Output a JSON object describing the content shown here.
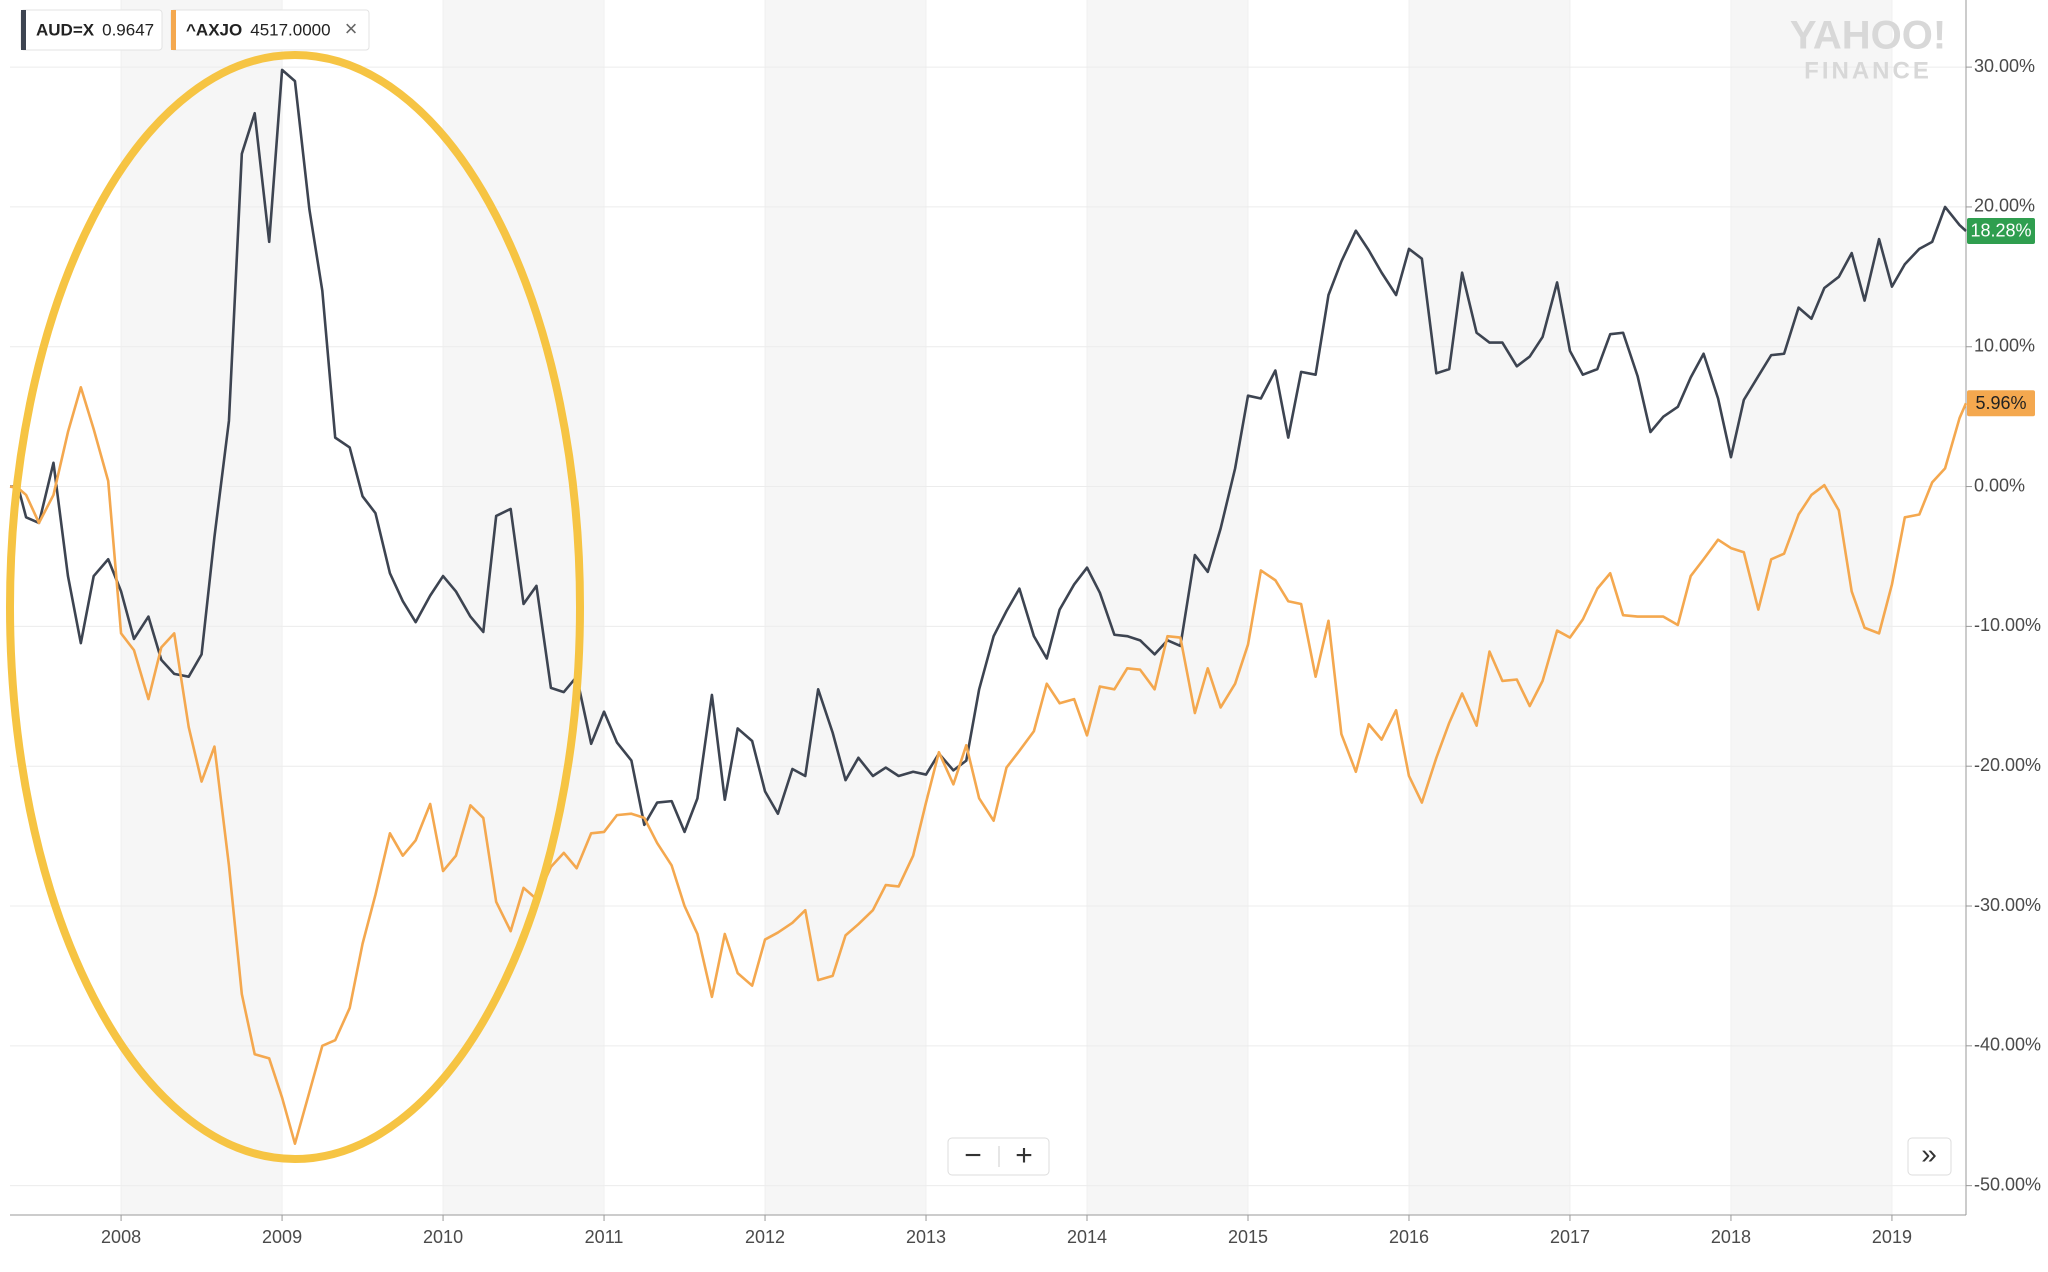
{
  "chart_data": {
    "type": "line",
    "x": [
      2007.31,
      2007.36,
      2007.41,
      2007.49,
      2007.58,
      2007.67,
      2007.75,
      2007.83,
      2007.92,
      2008.0,
      2008.08,
      2008.17,
      2008.25,
      2008.33,
      2008.42,
      2008.5,
      2008.58,
      2008.67,
      2008.75,
      2008.83,
      2008.92,
      2009.0,
      2009.08,
      2009.17,
      2009.25,
      2009.33,
      2009.42,
      2009.5,
      2009.58,
      2009.67,
      2009.75,
      2009.83,
      2009.92,
      2010.0,
      2010.08,
      2010.17,
      2010.25,
      2010.33,
      2010.42,
      2010.5,
      2010.58,
      2010.67,
      2010.75,
      2010.83,
      2010.92,
      2011.0,
      2011.08,
      2011.17,
      2011.25,
      2011.33,
      2011.42,
      2011.5,
      2011.58,
      2011.67,
      2011.75,
      2011.83,
      2011.92,
      2012.0,
      2012.08,
      2012.17,
      2012.25,
      2012.33,
      2012.42,
      2012.5,
      2012.58,
      2012.67,
      2012.75,
      2012.83,
      2012.92,
      2013.0,
      2013.08,
      2013.17,
      2013.25,
      2013.33,
      2013.42,
      2013.5,
      2013.58,
      2013.67,
      2013.75,
      2013.83,
      2013.92,
      2014.0,
      2014.08,
      2014.17,
      2014.25,
      2014.33,
      2014.42,
      2014.5,
      2014.58,
      2014.67,
      2014.75,
      2014.83,
      2014.92,
      2015.0,
      2015.08,
      2015.17,
      2015.25,
      2015.33,
      2015.42,
      2015.5,
      2015.58,
      2015.67,
      2015.75,
      2015.83,
      2015.92,
      2016.0,
      2016.08,
      2016.17,
      2016.25,
      2016.33,
      2016.42,
      2016.5,
      2016.58,
      2016.67,
      2016.75,
      2016.83,
      2016.92,
      2017.0,
      2017.08,
      2017.17,
      2017.25,
      2017.33,
      2017.42,
      2017.5,
      2017.58,
      2017.67,
      2017.75,
      2017.83,
      2017.92,
      2018.0,
      2018.08,
      2018.17,
      2018.25,
      2018.33,
      2018.42,
      2018.5,
      2018.58,
      2018.67,
      2018.75,
      2018.83,
      2018.92,
      2019.0,
      2019.08,
      2019.17,
      2019.25,
      2019.33,
      2019.42,
      2019.46
    ],
    "xlim": [
      2007.31,
      2019.46
    ],
    "xticks": [
      2008,
      2009,
      2010,
      2011,
      2012,
      2013,
      2014,
      2015,
      2016,
      2017,
      2018,
      2019
    ],
    "ylim": [
      -52.1,
      34.8
    ],
    "yticks": [
      {
        "value": 30,
        "label": "30.00%"
      },
      {
        "value": 20,
        "label": "20.00%"
      },
      {
        "value": 10,
        "label": "10.00%"
      },
      {
        "value": 0,
        "label": "0.00%"
      },
      {
        "value": -10,
        "label": "-10.00%"
      },
      {
        "value": -20,
        "label": "-20.00%"
      },
      {
        "value": -30,
        "label": "-30.00%"
      },
      {
        "value": -40,
        "label": "-40.00%"
      },
      {
        "value": -50,
        "label": "-50.00%"
      }
    ],
    "grid": true,
    "shade_alternate_years": true,
    "series": [
      {
        "name": "AUD=X",
        "quote": "0.9647",
        "color": "#3d4451",
        "end_label": "18.28%",
        "end_label_color": "#2f9e4f",
        "values": [
          0,
          0,
          -2.2,
          -2.6,
          1.7,
          -6.4,
          -11.2,
          -6.4,
          -5.2,
          -7.5,
          -10.9,
          -9.3,
          -12.4,
          -13.4,
          -13.6,
          -12.0,
          -3.6,
          4.7,
          23.8,
          26.7,
          17.5,
          29.8,
          29.0,
          19.8,
          14.0,
          3.5,
          2.8,
          -0.7,
          -1.9,
          -6.2,
          -8.2,
          -9.7,
          -7.8,
          -6.4,
          -7.5,
          -9.3,
          -10.4,
          -2.1,
          -1.6,
          -8.4,
          -7.1,
          -14.4,
          -14.7,
          -13.6,
          -18.4,
          -16.1,
          -18.3,
          -19.6,
          -24.2,
          -22.6,
          -22.5,
          -24.7,
          -22.3,
          -14.9,
          -22.4,
          -17.3,
          -18.2,
          -21.8,
          -23.4,
          -20.2,
          -20.7,
          -14.5,
          -17.6,
          -21.0,
          -19.4,
          -20.7,
          -20.1,
          -20.7,
          -20.4,
          -20.6,
          -19.1,
          -20.3,
          -19.6,
          -14.5,
          -10.7,
          -8.9,
          -7.3,
          -10.7,
          -12.3,
          -8.8,
          -7.0,
          -5.8,
          -7.6,
          -10.6,
          -10.7,
          -11.0,
          -12.0,
          -11.0,
          -11.4,
          -4.9,
          -6.1,
          -3.0,
          1.3,
          6.5,
          6.3,
          8.3,
          3.5,
          8.2,
          8.0,
          13.7,
          16.1,
          18.3,
          16.9,
          15.3,
          13.7,
          17.0,
          16.3,
          8.1,
          8.4,
          15.3,
          11.0,
          10.3,
          10.3,
          8.6,
          9.3,
          10.7,
          14.6,
          9.7,
          8.0,
          8.4,
          10.9,
          11.0,
          7.9,
          3.9,
          5.0,
          5.7,
          7.8,
          9.5,
          6.3,
          2.1,
          6.2,
          7.9,
          9.4,
          9.5,
          12.8,
          12.0,
          14.2,
          15.0,
          16.7,
          13.3,
          17.7,
          14.3,
          15.9,
          17.0,
          17.5,
          20.0,
          18.7,
          18.28
        ]
      },
      {
        "name": "^AXJO",
        "quote": "4517.0000",
        "color": "#f4a84f",
        "end_label": "5.96%",
        "end_label_color": "#f4a84f",
        "values": [
          0,
          -0.1,
          -0.6,
          -2.6,
          -0.6,
          3.9,
          7.1,
          4.1,
          0.4,
          -10.5,
          -11.7,
          -15.2,
          -11.5,
          -10.5,
          -17.2,
          -21.1,
          -18.6,
          -27.1,
          -36.3,
          -40.6,
          -40.9,
          -43.7,
          -47.0,
          -43.3,
          -40.0,
          -39.6,
          -37.3,
          -32.7,
          -29.2,
          -24.8,
          -26.4,
          -25.3,
          -22.7,
          -27.5,
          -26.4,
          -22.8,
          -23.7,
          -29.7,
          -31.8,
          -28.7,
          -29.5,
          -27.2,
          -26.2,
          -27.3,
          -24.8,
          -24.7,
          -23.5,
          -23.4,
          -23.7,
          -25.5,
          -27.1,
          -30.0,
          -32.0,
          -36.5,
          -32.0,
          -34.8,
          -35.7,
          -32.4,
          -31.9,
          -31.2,
          -30.3,
          -35.3,
          -35.0,
          -32.1,
          -31.3,
          -30.3,
          -28.5,
          -28.6,
          -26.4,
          -22.6,
          -19.0,
          -21.3,
          -18.5,
          -22.3,
          -23.9,
          -20.1,
          -18.9,
          -17.5,
          -14.1,
          -15.5,
          -15.2,
          -17.8,
          -14.3,
          -14.5,
          -13.0,
          -13.1,
          -14.5,
          -10.7,
          -10.8,
          -16.2,
          -13.0,
          -15.8,
          -14.1,
          -11.3,
          -6.0,
          -6.7,
          -8.2,
          -8.4,
          -13.6,
          -9.6,
          -17.7,
          -20.4,
          -17.0,
          -18.1,
          -16.0,
          -20.7,
          -22.6,
          -19.4,
          -16.9,
          -14.8,
          -17.1,
          -11.8,
          -13.9,
          -13.8,
          -15.7,
          -13.9,
          -10.3,
          -10.8,
          -9.5,
          -7.3,
          -6.2,
          -9.2,
          -9.3,
          -9.3,
          -9.3,
          -9.9,
          -6.4,
          -5.2,
          -3.8,
          -4.4,
          -4.7,
          -8.8,
          -5.2,
          -4.8,
          -2.0,
          -0.6,
          0.1,
          -1.7,
          -7.5,
          -10.1,
          -10.5,
          -7.0,
          -2.2,
          -2.0,
          0.3,
          1.3,
          4.9,
          5.96
        ]
      }
    ]
  },
  "watermark": {
    "line1": "YAHOO!",
    "line2": "FINANCE"
  },
  "controls": {
    "close": "×",
    "zoom_out": "−",
    "zoom_in": "+",
    "expand": "»"
  }
}
